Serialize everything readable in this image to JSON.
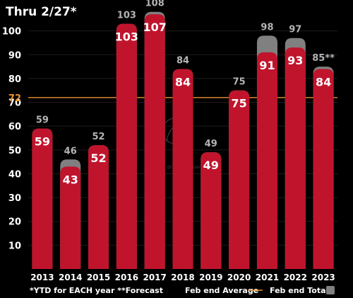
{
  "chart_data": {
    "type": "bar",
    "title": "Thru 2/27*",
    "categories": [
      "2013",
      "2014",
      "2015",
      "2016",
      "2017",
      "2018",
      "2019",
      "2020",
      "2021",
      "2022",
      "2023"
    ],
    "series": [
      {
        "name": "YTD",
        "values": [
          59,
          43,
          52,
          103,
          107,
          84,
          49,
          75,
          91,
          93,
          84
        ],
        "color": "#c0142d"
      },
      {
        "name": "Feb end Totals",
        "values": [
          59,
          46,
          52,
          103,
          108,
          84,
          49,
          75,
          98,
          97,
          85
        ],
        "color": "#808080"
      }
    ],
    "total_labels": [
      "59",
      "46",
      "52",
      "103",
      "108",
      "84",
      "49",
      "75",
      "98",
      "97",
      "85**"
    ],
    "average": {
      "label": "72",
      "value": 72,
      "color": "#e8912c"
    },
    "ylim": [
      0,
      110
    ],
    "yticks": [
      10,
      20,
      30,
      40,
      50,
      60,
      70,
      80,
      90,
      100
    ],
    "grid": true,
    "legend": {
      "footnote": "*YTD for EACH year **Forecast",
      "average_label": "Feb end Average",
      "totals_label": "Feb end Totals"
    },
    "watermark": "@ONEStargazer"
  }
}
